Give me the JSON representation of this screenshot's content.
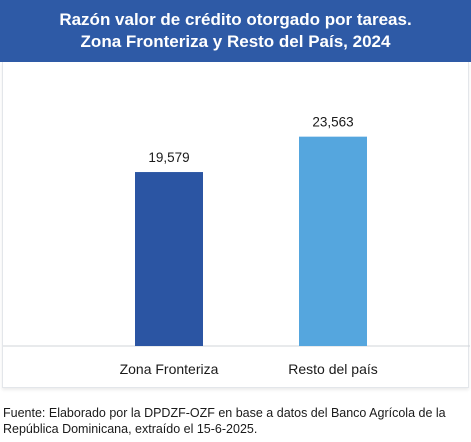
{
  "chart_data": {
    "type": "bar",
    "title": "Razón valor de crédito otorgado por tareas.",
    "subtitle": "Zona Fronteriza y Resto del País, 2024",
    "categories": [
      "Zona Fronteriza",
      "Resto del país"
    ],
    "values": [
      19579,
      23563
    ],
    "value_labels": [
      "19,579",
      "23,563"
    ],
    "bar_colors": [
      "#2b55a3",
      "#55a6de"
    ],
    "ylim": [
      0,
      26000
    ],
    "grid": false,
    "xlabel": "",
    "ylabel": ""
  },
  "source_text": "Fuente: Elaborado por la DPDZF-OZF en base a datos del Banco Agrícola de la República Dominicana, extraído el 15-6-2025."
}
